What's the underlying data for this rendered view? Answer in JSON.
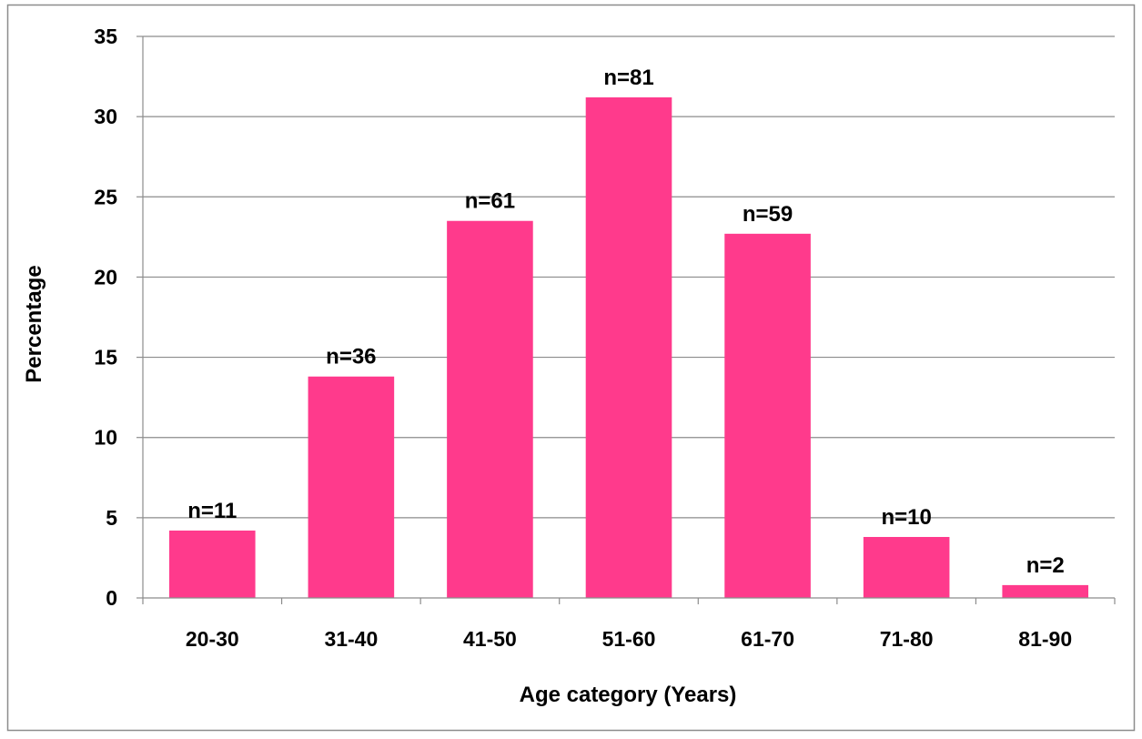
{
  "chart_data": {
    "type": "bar",
    "title": "",
    "xlabel": "Age category (Years)",
    "ylabel": "Percentage",
    "categories": [
      "20-30",
      "31-40",
      "41-50",
      "51-60",
      "61-70",
      "71-80",
      "81-90"
    ],
    "values": [
      4.2,
      13.8,
      23.5,
      31.2,
      22.7,
      3.8,
      0.8
    ],
    "data_labels": [
      "n=11",
      "n=36",
      "n=61",
      "n=81",
      "n=59",
      "n=10",
      "n=2"
    ],
    "ylim": [
      0,
      35
    ],
    "yticks": [
      0,
      5,
      10,
      15,
      20,
      25,
      30,
      35
    ],
    "grid": "horizontal",
    "legend": "none",
    "bar_color": "#ff3a8c"
  }
}
